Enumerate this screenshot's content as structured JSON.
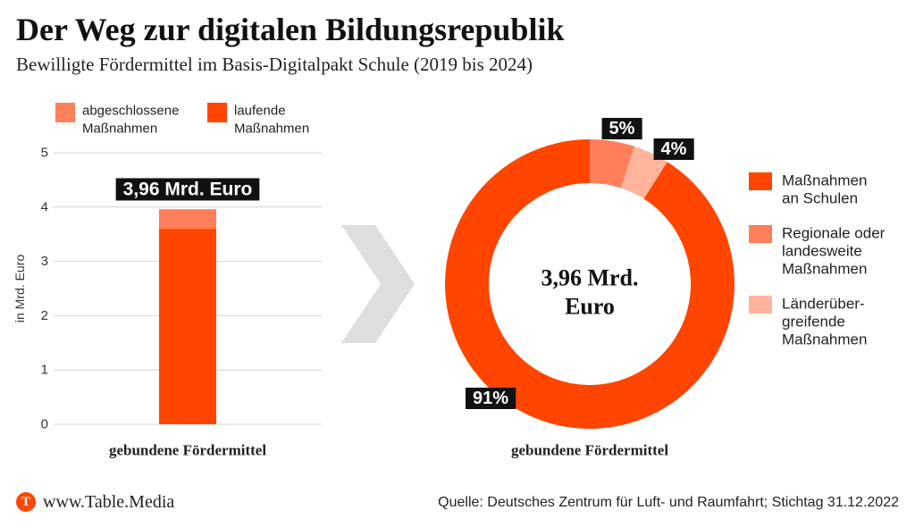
{
  "title": "Der Weg zur digitalen Bildungsrepublik",
  "subtitle": "Bewilligte Fördermittel im Basis-Digitalpakt Schule (2019 bis 2024)",
  "footer": {
    "logo_letter": "T",
    "brand": "www.Table.Media",
    "source": "Quelle: Deutsches Zentrum für Luft- und Raumfahrt; Stichtag 31.12.2022"
  },
  "colors": {
    "laufende": "#ff4500",
    "abgeschlossene": "#ff7f5a",
    "laenderuebergreifend": "#ffb49b",
    "label_bg": "#111111",
    "arrow": "#dedede",
    "grid": "#d4d4d4"
  },
  "chart_data": [
    {
      "type": "bar",
      "stacked": true,
      "categories": [
        "gebundene Fördermittel"
      ],
      "series": [
        {
          "name": "laufende Maßnahmen",
          "values": [
            3.6
          ]
        },
        {
          "name": "abgeschlossene Maßnahmen",
          "values": [
            0.36
          ]
        }
      ],
      "total_label": "3,96 Mrd. Euro",
      "ylabel": "in Mrd. Euro",
      "ylim": [
        0,
        5
      ],
      "yticks": [
        0,
        1,
        2,
        3,
        4,
        5
      ],
      "legend_lines": [
        [
          "abgeschlossene",
          "Maßnahmen"
        ],
        [
          "laufende",
          "Maßnahmen"
        ]
      ],
      "legend_placement": "top",
      "grid": true
    },
    {
      "type": "pie",
      "donut": true,
      "center_label_lines": [
        "3,96 Mrd.",
        "Euro"
      ],
      "category_label": "gebundene Fördermittel",
      "slices": [
        {
          "legend_lines": [
            "Maßnahmen",
            "an Schulen"
          ],
          "value": 91,
          "label": "91%"
        },
        {
          "legend_lines": [
            "Regionale oder",
            "landesweite",
            "Maßnahmen"
          ],
          "value": 5,
          "label": "5%"
        },
        {
          "legend_lines": [
            "Länderüber-",
            "greifende",
            "Maßnahmen"
          ],
          "value": 4,
          "label": "4%"
        }
      ],
      "legend_placement": "right"
    }
  ]
}
